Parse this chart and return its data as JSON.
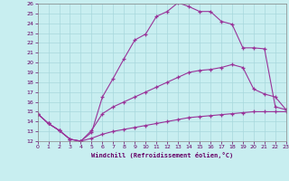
{
  "xlabel": "Windchill (Refroidissement éolien,°C)",
  "bg_color": "#c8eef0",
  "grid_color": "#a8d8dc",
  "line_color": "#993399",
  "xmin": 0,
  "xmax": 23,
  "ymin": 12,
  "ymax": 26,
  "curve1_x": [
    0,
    1,
    2,
    3,
    4,
    5,
    6,
    7,
    8,
    9,
    10,
    11,
    12,
    13,
    14,
    15,
    16,
    17,
    18,
    19,
    20,
    21,
    22,
    23
  ],
  "curve1_y": [
    14.8,
    13.8,
    13.1,
    12.2,
    12.0,
    12.9,
    16.5,
    18.4,
    20.4,
    22.3,
    22.9,
    24.7,
    25.2,
    26.1,
    25.7,
    25.2,
    25.2,
    24.2,
    23.9,
    21.5,
    21.5,
    21.4,
    15.5,
    15.2
  ],
  "curve2_x": [
    0,
    1,
    2,
    3,
    4,
    5,
    6,
    7,
    8,
    9,
    10,
    11,
    12,
    13,
    14,
    15,
    16,
    17,
    18,
    19,
    20,
    21,
    22,
    23
  ],
  "curve2_y": [
    14.8,
    13.8,
    13.1,
    12.2,
    12.0,
    13.1,
    14.8,
    15.5,
    16.0,
    16.5,
    17.0,
    17.5,
    18.0,
    18.5,
    19.0,
    19.2,
    19.3,
    19.5,
    19.8,
    19.5,
    17.3,
    16.8,
    16.5,
    15.2
  ],
  "curve3_x": [
    0,
    1,
    2,
    3,
    4,
    5,
    6,
    7,
    8,
    9,
    10,
    11,
    12,
    13,
    14,
    15,
    16,
    17,
    18,
    19,
    20,
    21,
    22,
    23
  ],
  "curve3_y": [
    14.8,
    13.8,
    13.1,
    12.2,
    12.0,
    12.3,
    12.7,
    13.0,
    13.2,
    13.4,
    13.6,
    13.8,
    14.0,
    14.2,
    14.4,
    14.5,
    14.6,
    14.7,
    14.8,
    14.9,
    15.0,
    15.0,
    15.0,
    15.0
  ]
}
